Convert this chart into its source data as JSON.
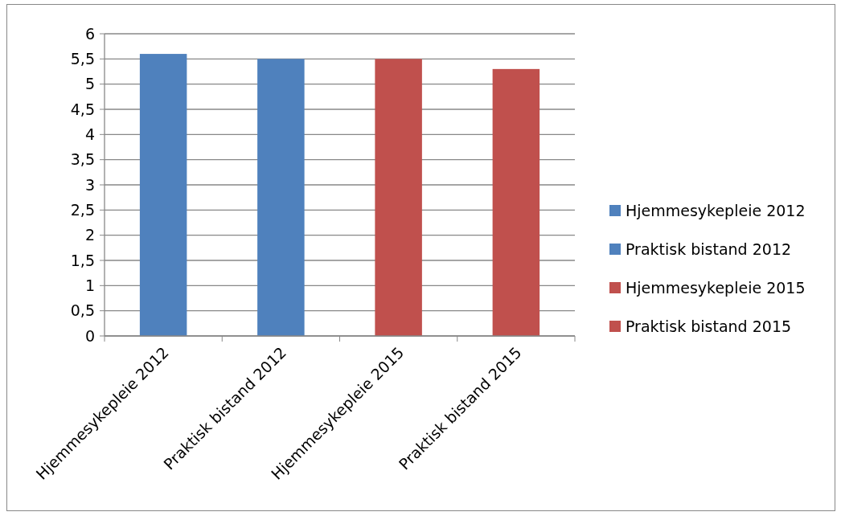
{
  "chart_data": {
    "type": "bar",
    "stacked": true,
    "categories": [
      "Hjemmesykepleie 2012",
      "Praktisk bistand 2012",
      "Hjemmesykepleie 2015",
      "Praktisk bistand 2015"
    ],
    "series": [
      {
        "name": "Hjemmesykepleie 2012",
        "color": "#4f81bd",
        "values": [
          5.6,
          null,
          null,
          null
        ]
      },
      {
        "name": "Praktisk bistand 2012",
        "color": "#4f81bd",
        "values": [
          null,
          5.5,
          null,
          null
        ]
      },
      {
        "name": "Hjemmesykepleie 2015",
        "color": "#c0504d",
        "values": [
          null,
          null,
          5.5,
          null
        ]
      },
      {
        "name": "Praktisk bistand 2015",
        "color": "#c0504d",
        "values": [
          null,
          null,
          null,
          5.3
        ]
      }
    ],
    "ylim": [
      0,
      6
    ],
    "yticks": [
      0,
      {
        "value": 0.5,
        "label": "0,5"
      },
      1,
      {
        "value": 1.5,
        "label": "1,5"
      },
      2,
      {
        "value": 2.5,
        "label": "2,5"
      },
      3,
      {
        "value": 3.5,
        "label": "3,5"
      },
      4,
      {
        "value": 4.5,
        "label": "4,5"
      },
      5,
      {
        "value": 5.5,
        "label": "5,5"
      },
      6
    ],
    "grid": "y",
    "legend": "right"
  }
}
